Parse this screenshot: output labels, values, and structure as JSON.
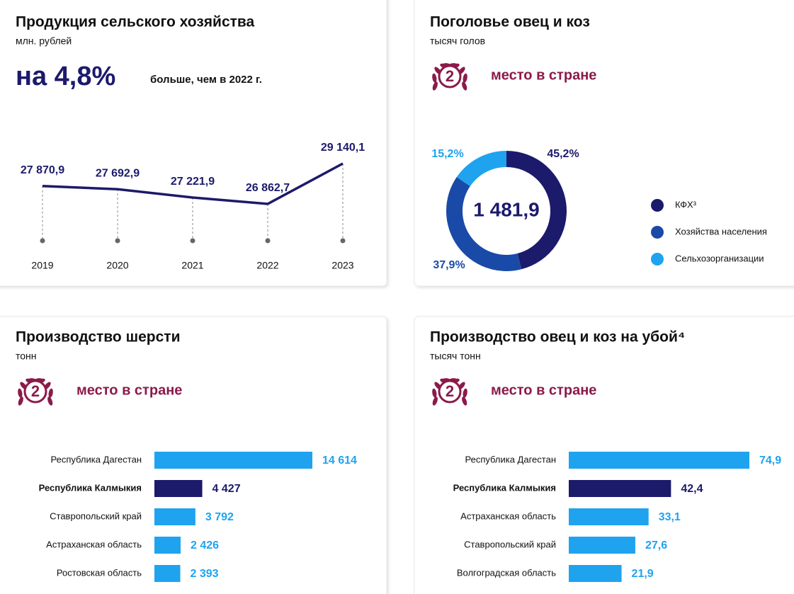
{
  "chart_data": [
    {
      "type": "line",
      "title": "Продукция сельского хозяйства",
      "subtitle": "млн. рублей",
      "headline": "на 4,8%",
      "headline_note": "больше, чем в 2022 г.",
      "categories": [
        "2019",
        "2020",
        "2021",
        "2022",
        "2023"
      ],
      "values": [
        27870.9,
        27692.9,
        27221.9,
        26862.7,
        29140.1
      ],
      "value_labels": [
        "27 870,9",
        "27 692,9",
        "27 221,9",
        "26 862,7",
        "29 140,1"
      ],
      "color": "#1c1a6b"
    },
    {
      "type": "pie",
      "title": "Поголовье овец и коз",
      "subtitle": "тысяч голов",
      "rank": "2",
      "rank_label": "место в стране",
      "center_label": "1 481,9",
      "categories": [
        "КФХ³",
        "Хозяйства населения",
        "Сельхозорганизации"
      ],
      "values": [
        45.2,
        37.9,
        15.2
      ],
      "value_labels": [
        "45,2%",
        "37,9%",
        "15,2%"
      ],
      "colors": [
        "#1c1a6b",
        "#1a4aa8",
        "#1fa3ef"
      ]
    },
    {
      "type": "bar",
      "title": "Производство шерсти",
      "subtitle": "тонн",
      "rank": "2",
      "rank_label": "место в стране",
      "categories": [
        "Республика Дагестан",
        "Республика Калмыкия",
        "Ставропольский край",
        "Астраханская область",
        "Ростовская область"
      ],
      "values": [
        14614,
        4427,
        3792,
        2426,
        2393
      ],
      "value_labels": [
        "14 614",
        "4 427",
        "3 792",
        "2 426",
        "2 393"
      ],
      "colors": [
        "#1fa3ef",
        "#1c1a6b",
        "#1fa3ef",
        "#1fa3ef",
        "#1fa3ef"
      ]
    },
    {
      "type": "bar",
      "title": "Производство овец и коз на убой⁴",
      "subtitle": "тысяч тонн",
      "rank": "2",
      "rank_label": "место в стране",
      "categories": [
        "Республика Дагестан",
        "Республика Калмыкия",
        "Астраханская область",
        "Ставропольский край",
        "Волгоградская область"
      ],
      "values": [
        74.9,
        42.4,
        33.1,
        27.6,
        21.9
      ],
      "value_labels": [
        "74,9",
        "42,4",
        "33,1",
        "27,6",
        "21,9"
      ],
      "colors": [
        "#1fa3ef",
        "#1c1a6b",
        "#1fa3ef",
        "#1fa3ef",
        "#1fa3ef"
      ]
    }
  ]
}
